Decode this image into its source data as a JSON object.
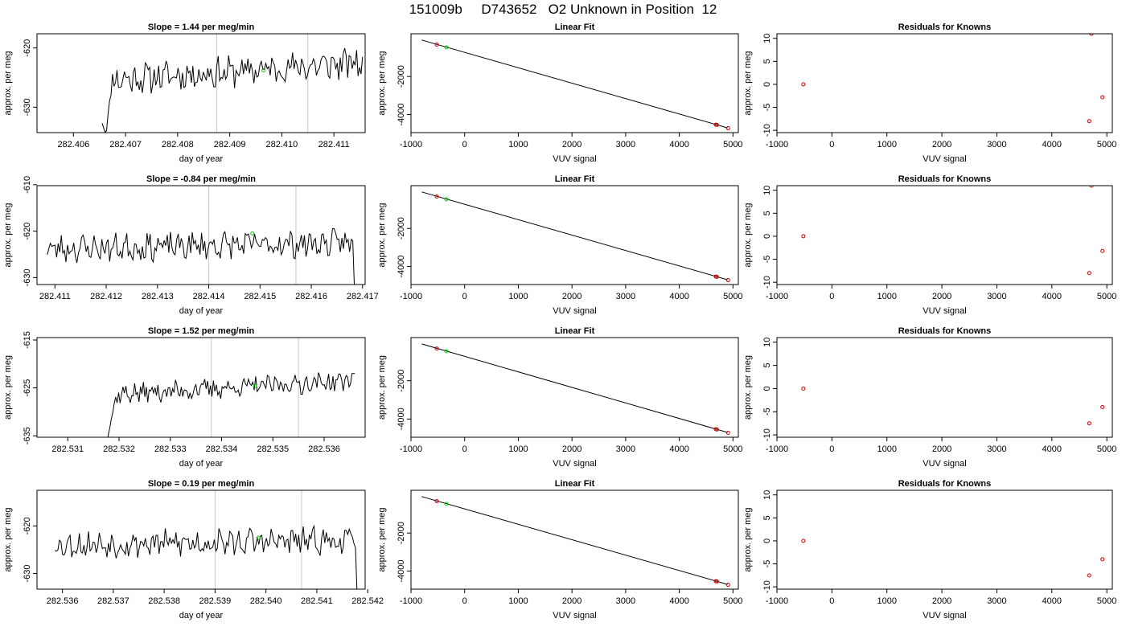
{
  "figure": {
    "title": "151009b     D743652   O2 Unknown in Position  12"
  },
  "chart_data": [
    {
      "type": "line",
      "row": 1,
      "panel": "time-series",
      "title": "Slope =  1.44  per meg/min",
      "xlabel": "day of year",
      "ylabel": "approx. per meg",
      "xlim": [
        282.4053,
        282.4116
      ],
      "ylim": [
        -634.3,
        -617.6
      ],
      "xticks": [
        282.406,
        282.407,
        282.408,
        282.409,
        282.41,
        282.411
      ],
      "xtick_labels": [
        "282.406",
        "282.407",
        "282.408",
        "282.409",
        "282.410",
        "282.411"
      ],
      "yticks": [
        -620,
        -630
      ],
      "ytick_labels": [
        "-620",
        "-630"
      ],
      "vlines": [
        282.40875,
        282.4105
      ],
      "marker": {
        "x": 282.40965,
        "y": -623.8,
        "color": "#00d000"
      },
      "series": {
        "x0": 282.40655,
        "x1": 282.41155,
        "n": 176,
        "seed": 11,
        "start_y": -632.5,
        "low_y": -634.5,
        "settle": -625.5,
        "end_level": -622.5,
        "amp": 2.2,
        "trend": 0,
        "rise_frac": 0.04,
        "tail": "none",
        "tail_y": 0
      }
    },
    {
      "type": "line",
      "row": 1,
      "panel": "fit",
      "title": "Linear Fit",
      "xlabel": "VUV signal",
      "ylabel": "approx. per meg",
      "xlim": [
        -1000,
        5100
      ],
      "ylim": [
        -4950,
        250
      ],
      "xticks": [
        -1000,
        0,
        1000,
        2000,
        3000,
        4000,
        5000
      ],
      "xtick_labels": [
        "-1000",
        "0",
        "1000",
        "2000",
        "3000",
        "4000",
        "5000"
      ],
      "yticks": [
        -2000,
        -4000
      ],
      "ytick_labels": [
        "-2000",
        "-4000"
      ],
      "line": {
        "x": [
          -800,
          4900
        ],
        "y": [
          -80,
          -4700
        ]
      },
      "knowns": {
        "x": [
          -520,
          4680,
          4700,
          4910
        ],
        "y": [
          -320,
          -4530,
          -4545,
          -4720
        ]
      },
      "unknown": {
        "x": -340,
        "y": -464
      }
    },
    {
      "type": "scatter",
      "row": 1,
      "panel": "residuals",
      "title": "Residuals for Knowns",
      "xlabel": "VUV signal",
      "ylabel": "approx. per meg",
      "xlim": [
        -1000,
        5100
      ],
      "ylim": [
        -10.5,
        11
      ],
      "xticks": [
        -1000,
        0,
        1000,
        2000,
        3000,
        4000,
        5000
      ],
      "xtick_labels": [
        "-1000",
        "0",
        "1000",
        "2000",
        "3000",
        "4000",
        "5000"
      ],
      "yticks": [
        10,
        5,
        0,
        -5,
        -10
      ],
      "ytick_labels": [
        "10",
        "5",
        "0",
        "-5",
        "-10"
      ],
      "points": {
        "x": [
          -520,
          4680,
          4720,
          4920
        ],
        "y": [
          0,
          -8,
          11,
          -2.8
        ]
      }
    },
    {
      "type": "line",
      "row": 2,
      "panel": "time-series",
      "title": "Slope =  -0.84  per meg/min",
      "xlabel": "day of year",
      "ylabel": "approx. per meg",
      "xlim": [
        282.41065,
        282.41705
      ],
      "ylim": [
        -631.5,
        -610.2
      ],
      "xticks": [
        282.411,
        282.412,
        282.413,
        282.414,
        282.415,
        282.416,
        282.417
      ],
      "xtick_labels": [
        "282.411",
        "282.412",
        "282.413",
        "282.414",
        "282.415",
        "282.416",
        "282.417"
      ],
      "yticks": [
        -610,
        -620,
        -630
      ],
      "ytick_labels": [
        "-610",
        "-620",
        "-630"
      ],
      "vlines": [
        282.414,
        282.4157
      ],
      "marker": {
        "x": 282.41485,
        "y": -620.5,
        "color": "#00d000"
      },
      "series": {
        "x0": 282.41085,
        "x1": 282.4169,
        "n": 200,
        "seed": 23,
        "start_y": -624.5,
        "low_y": -624.5,
        "settle": -623.8,
        "end_level": -622.5,
        "amp": 2.5,
        "trend": 0,
        "rise_frac": 0.0,
        "tail": "drop",
        "tail_y": -632
      }
    },
    {
      "type": "line",
      "row": 2,
      "panel": "fit",
      "title": "Linear Fit",
      "xlabel": "VUV signal",
      "ylabel": "approx. per meg",
      "xlim": [
        -1000,
        5100
      ],
      "ylim": [
        -4950,
        250
      ],
      "xticks": [
        -1000,
        0,
        1000,
        2000,
        3000,
        4000,
        5000
      ],
      "xtick_labels": [
        "-1000",
        "0",
        "1000",
        "2000",
        "3000",
        "4000",
        "5000"
      ],
      "yticks": [
        -2000,
        -4000
      ],
      "ytick_labels": [
        "-2000",
        "-4000"
      ],
      "line": {
        "x": [
          -800,
          4900
        ],
        "y": [
          -80,
          -4700
        ]
      },
      "knowns": {
        "x": [
          -520,
          4680,
          4700,
          4910
        ],
        "y": [
          -320,
          -4530,
          -4545,
          -4720
        ]
      },
      "unknown": {
        "x": -340,
        "y": -464
      }
    },
    {
      "type": "scatter",
      "row": 2,
      "panel": "residuals",
      "title": "Residuals for Knowns",
      "xlabel": "VUV signal",
      "ylabel": "approx. per meg",
      "xlim": [
        -1000,
        5100
      ],
      "ylim": [
        -10.5,
        11
      ],
      "xticks": [
        -1000,
        0,
        1000,
        2000,
        3000,
        4000,
        5000
      ],
      "xtick_labels": [
        "-1000",
        "0",
        "1000",
        "2000",
        "3000",
        "4000",
        "5000"
      ],
      "yticks": [
        10,
        5,
        0,
        -5,
        -10
      ],
      "ytick_labels": [
        "10",
        "5",
        "0",
        "-5",
        "-10"
      ],
      "points": {
        "x": [
          -520,
          4680,
          4720,
          4920
        ],
        "y": [
          0,
          -8,
          11,
          -3.2
        ]
      }
    },
    {
      "type": "line",
      "row": 3,
      "panel": "time-series",
      "title": "Slope =  1.52  per meg/min",
      "xlabel": "day of year",
      "ylabel": "approx. per meg",
      "xlim": [
        282.5304,
        282.5368
      ],
      "ylim": [
        -635.3,
        -614.5
      ],
      "xticks": [
        282.531,
        282.532,
        282.533,
        282.534,
        282.535,
        282.536
      ],
      "xtick_labels": [
        "282.531",
        "282.532",
        "282.533",
        "282.534",
        "282.535",
        "282.536"
      ],
      "yticks": [
        -615,
        -625,
        -635
      ],
      "ytick_labels": [
        "-615",
        "-625",
        "-635"
      ],
      "vlines": [
        282.5338,
        282.5355
      ],
      "marker": {
        "x": 282.53465,
        "y": -624.6,
        "color": "#00d000"
      },
      "series": {
        "x0": 282.53165,
        "x1": 282.5366,
        "n": 175,
        "seed": 37,
        "start_y": -636.5,
        "low_y": -636.5,
        "settle": -626.5,
        "end_level": -623.5,
        "amp": 1.8,
        "trend": 0,
        "rise_frac": 0.06,
        "tail": "up",
        "tail_y": -622
      }
    },
    {
      "type": "line",
      "row": 3,
      "panel": "fit",
      "title": "Linear Fit",
      "xlabel": "VUV signal",
      "ylabel": "approx. per meg",
      "xlim": [
        -1000,
        5100
      ],
      "ylim": [
        -4950,
        250
      ],
      "xticks": [
        -1000,
        0,
        1000,
        2000,
        3000,
        4000,
        5000
      ],
      "xtick_labels": [
        "-1000",
        "0",
        "1000",
        "2000",
        "3000",
        "4000",
        "5000"
      ],
      "yticks": [
        -2000,
        -4000
      ],
      "ytick_labels": [
        "-2000",
        "-4000"
      ],
      "line": {
        "x": [
          -800,
          4900
        ],
        "y": [
          -80,
          -4700
        ]
      },
      "knowns": {
        "x": [
          -520,
          4680,
          4700,
          4910
        ],
        "y": [
          -320,
          -4530,
          -4545,
          -4720
        ]
      },
      "unknown": {
        "x": -340,
        "y": -464
      }
    },
    {
      "type": "scatter",
      "row": 3,
      "panel": "residuals",
      "title": "Residuals for Knowns",
      "xlabel": "VUV signal",
      "ylabel": "approx. per meg",
      "xlim": [
        -1000,
        5100
      ],
      "ylim": [
        -10.5,
        11
      ],
      "xticks": [
        -1000,
        0,
        1000,
        2000,
        3000,
        4000,
        5000
      ],
      "xtick_labels": [
        "-1000",
        "0",
        "1000",
        "2000",
        "3000",
        "4000",
        "5000"
      ],
      "yticks": [
        10,
        5,
        0,
        -5,
        -10
      ],
      "ytick_labels": [
        "10",
        "5",
        "0",
        "-5",
        "-10"
      ],
      "points": {
        "x": [
          -520,
          4680,
          4920
        ],
        "y": [
          0,
          -7.5,
          -4
        ]
      }
    },
    {
      "type": "line",
      "row": 4,
      "panel": "time-series",
      "title": "Slope =  0.19  per meg/min",
      "xlabel": "day of year",
      "ylabel": "approx. per meg",
      "xlim": [
        282.5355,
        282.54195
      ],
      "ylim": [
        -633.3,
        -612.5
      ],
      "xticks": [
        282.536,
        282.537,
        282.538,
        282.539,
        282.54,
        282.541,
        282.542
      ],
      "xtick_labels": [
        "282.536",
        "282.537",
        "282.538",
        "282.539",
        "282.540",
        "282.541",
        "282.542"
      ],
      "yticks": [
        -620,
        -630
      ],
      "ytick_labels": [
        "-620",
        "-630"
      ],
      "vlines": [
        282.539,
        282.5407
      ],
      "marker": {
        "x": 282.53985,
        "y": -622.5,
        "color": "#00d000"
      },
      "series": {
        "x0": 282.53585,
        "x1": 282.54185,
        "n": 200,
        "seed": 53,
        "start_y": -624,
        "low_y": -624,
        "settle": -624,
        "end_level": -623,
        "amp": 2.4,
        "trend": 0,
        "rise_frac": 0.0,
        "tail": "drop",
        "tail_y": -634
      }
    },
    {
      "type": "line",
      "row": 4,
      "panel": "fit",
      "title": "Linear Fit",
      "xlabel": "VUV signal",
      "ylabel": "approx. per meg",
      "xlim": [
        -1000,
        5100
      ],
      "ylim": [
        -4950,
        250
      ],
      "xticks": [
        -1000,
        0,
        1000,
        2000,
        3000,
        4000,
        5000
      ],
      "xtick_labels": [
        "-1000",
        "0",
        "1000",
        "2000",
        "3000",
        "4000",
        "5000"
      ],
      "yticks": [
        -2000,
        -4000
      ],
      "ytick_labels": [
        "-2000",
        "-4000"
      ],
      "line": {
        "x": [
          -800,
          4900
        ],
        "y": [
          -80,
          -4700
        ]
      },
      "knowns": {
        "x": [
          -520,
          4680,
          4700,
          4910
        ],
        "y": [
          -320,
          -4530,
          -4545,
          -4720
        ]
      },
      "unknown": {
        "x": -340,
        "y": -464
      }
    },
    {
      "type": "scatter",
      "row": 4,
      "panel": "residuals",
      "title": "Residuals for Knowns",
      "xlabel": "VUV signal",
      "ylabel": "approx. per meg",
      "xlim": [
        -1000,
        5100
      ],
      "ylim": [
        -10.5,
        11
      ],
      "xticks": [
        -1000,
        0,
        1000,
        2000,
        3000,
        4000,
        5000
      ],
      "xtick_labels": [
        "-1000",
        "0",
        "1000",
        "2000",
        "3000",
        "4000",
        "5000"
      ],
      "yticks": [
        10,
        5,
        0,
        -5,
        -10
      ],
      "ytick_labels": [
        "10",
        "5",
        "0",
        "-5",
        "-10"
      ],
      "points": {
        "x": [
          -520,
          4680,
          4920
        ],
        "y": [
          0,
          -7.5,
          -4
        ]
      }
    }
  ]
}
